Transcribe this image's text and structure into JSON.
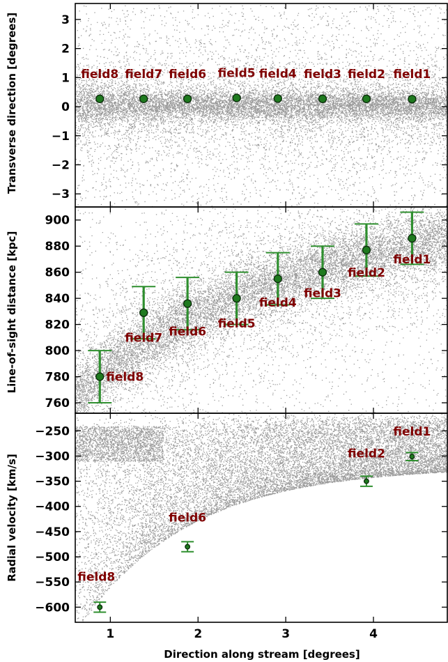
{
  "colors": {
    "marker": "#1f7a1f",
    "errorbar": "#2f8f2f",
    "field_label": "#7f0000",
    "scatter": "#9a9a9a"
  },
  "xaxis": {
    "label": "Direction along stream [degrees]",
    "xlim": [
      0.6,
      4.85
    ],
    "ticks": [
      1,
      2,
      3,
      4
    ]
  },
  "chart_data": [
    {
      "type": "scatter",
      "ylabel": "Transverse direction [degrees]",
      "ylim": [
        -3.45,
        3.55
      ],
      "yticks": [
        3,
        2,
        1,
        0,
        -1,
        -2,
        -3
      ],
      "points": [
        {
          "label": "field8",
          "x": 0.88,
          "y": 0.27
        },
        {
          "label": "field7",
          "x": 1.38,
          "y": 0.27
        },
        {
          "label": "field6",
          "x": 1.88,
          "y": 0.27
        },
        {
          "label": "field5",
          "x": 2.44,
          "y": 0.3
        },
        {
          "label": "field4",
          "x": 2.91,
          "y": 0.28
        },
        {
          "label": "field3",
          "x": 3.42,
          "y": 0.27
        },
        {
          "label": "field2",
          "x": 3.92,
          "y": 0.27
        },
        {
          "label": "field1",
          "x": 4.44,
          "y": 0.26
        }
      ],
      "background": "simulated stream particles (grey points)"
    },
    {
      "type": "scatter",
      "ylabel": "Line-of-sight distance [kpc]",
      "ylim": [
        752,
        910
      ],
      "yticks": [
        900,
        880,
        860,
        840,
        820,
        800,
        780,
        760
      ],
      "points": [
        {
          "label": "field8",
          "x": 0.88,
          "y": 780,
          "err": 20
        },
        {
          "label": "field7",
          "x": 1.38,
          "y": 829,
          "err": 20
        },
        {
          "label": "field6",
          "x": 1.88,
          "y": 836,
          "err": 20
        },
        {
          "label": "field5",
          "x": 2.44,
          "y": 840,
          "err": 20
        },
        {
          "label": "field4",
          "x": 2.91,
          "y": 855,
          "err": 20
        },
        {
          "label": "field3",
          "x": 3.42,
          "y": 860,
          "err": 20
        },
        {
          "label": "field2",
          "x": 3.92,
          "y": 877,
          "err": 20
        },
        {
          "label": "field1",
          "x": 4.44,
          "y": 886,
          "err": 20
        }
      ],
      "background": "simulated stream particles (grey points)"
    },
    {
      "type": "scatter",
      "ylabel": "Radial velocity [km/s]",
      "ylim": [
        -630,
        -215
      ],
      "yticks": [
        -250,
        -300,
        -350,
        -400,
        -450,
        -500,
        -550,
        -600
      ],
      "points": [
        {
          "label": "field8",
          "x": 0.88,
          "y": -600,
          "err": 10
        },
        {
          "label": "field6",
          "x": 1.88,
          "y": -480,
          "err": 10
        },
        {
          "label": "field2",
          "x": 3.92,
          "y": -350,
          "err": 10
        },
        {
          "label": "field1",
          "x": 4.44,
          "y": -301,
          "err": 8
        }
      ],
      "background": "simulated stream particles (grey points)"
    }
  ]
}
